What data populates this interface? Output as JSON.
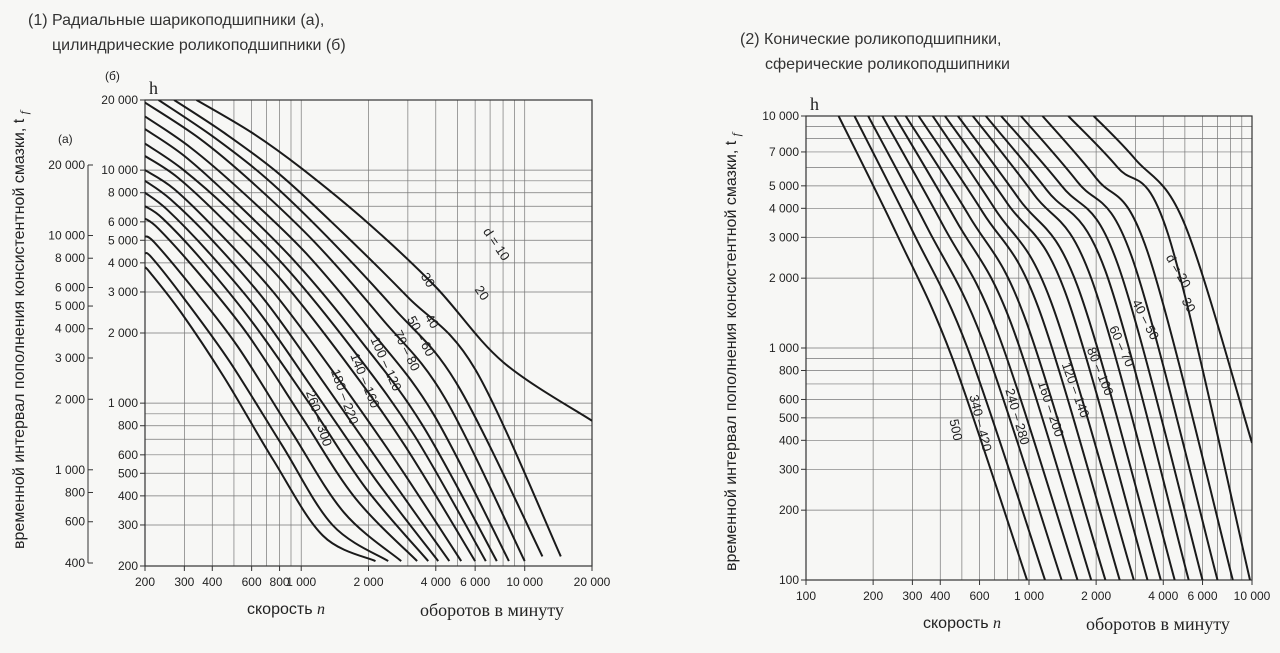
{
  "chart_data": [
    {
      "type": "line",
      "title": [
        "(1) Радиальные шарикоподшипники (а),",
        "цилиндрические роликоподшипники (б)"
      ],
      "ylabel": "временной интервал пополнения консистентной смазки, t",
      "ylabel_sub": "f",
      "y_unit": "h",
      "xlabel": "скорость",
      "xlabel_var": "n",
      "x_unit": "оборотов в минуту",
      "x_scale": "log",
      "y_scale": "log",
      "xlim": [
        200,
        20000
      ],
      "ylim_b": [
        200,
        20000
      ],
      "ylim_a": [
        400,
        20000
      ],
      "xticks": [
        {
          "v": 200,
          "t": "200"
        },
        {
          "v": 300,
          "t": "300"
        },
        {
          "v": 400,
          "t": "400"
        },
        {
          "v": 600,
          "t": "600"
        },
        {
          "v": 800,
          "t": "800"
        },
        {
          "v": 1000,
          "t": "1 000"
        },
        {
          "v": 2000,
          "t": "2 000"
        },
        {
          "v": 4000,
          "t": "4 000"
        },
        {
          "v": 6000,
          "t": "6 000"
        },
        {
          "v": 10000,
          "t": "10 000"
        },
        {
          "v": 20000,
          "t": "20 000"
        }
      ],
      "yticks_b_label": "(б)",
      "yticks_b": [
        {
          "v": 20000,
          "t": "20 000"
        },
        {
          "v": 10000,
          "t": "10 000"
        },
        {
          "v": 8000,
          "t": "8 000"
        },
        {
          "v": 6000,
          "t": "6 000"
        },
        {
          "v": 5000,
          "t": "5 000"
        },
        {
          "v": 4000,
          "t": "4 000"
        },
        {
          "v": 3000,
          "t": "3 000"
        },
        {
          "v": 2000,
          "t": "2 000"
        },
        {
          "v": 1000,
          "t": "1 000"
        },
        {
          "v": 800,
          "t": "800"
        },
        {
          "v": 600,
          "t": "600"
        },
        {
          "v": 500,
          "t": "500"
        },
        {
          "v": 400,
          "t": "400"
        },
        {
          "v": 300,
          "t": "300"
        },
        {
          "v": 200,
          "t": "200"
        }
      ],
      "yticks_a_label": "(а)",
      "yticks_a": [
        {
          "v": 20000,
          "t": "20 000"
        },
        {
          "v": 10000,
          "t": "10 000"
        },
        {
          "v": 8000,
          "t": "8 000"
        },
        {
          "v": 6000,
          "t": "6 000"
        },
        {
          "v": 5000,
          "t": "5 000"
        },
        {
          "v": 4000,
          "t": "4 000"
        },
        {
          "v": 3000,
          "t": "3 000"
        },
        {
          "v": 2000,
          "t": "2 000"
        },
        {
          "v": 1000,
          "t": "1 000"
        },
        {
          "v": 800,
          "t": "800"
        },
        {
          "v": 600,
          "t": "600"
        },
        {
          "v": 400,
          "t": "400"
        }
      ],
      "series": [
        {
          "name": "d = 10",
          "x": [
            340,
            600,
            1000,
            2000,
            4000,
            8000,
            20000
          ],
          "y": [
            20000,
            14500,
            10200,
            5900,
            3150,
            1500,
            840
          ]
        },
        {
          "name": "20",
          "x": [
            270,
            450,
            800,
            1500,
            3000,
            6000,
            14500
          ],
          "y": [
            20000,
            14500,
            9600,
            5500,
            2850,
            1400,
            220
          ]
        },
        {
          "name": "30",
          "x": [
            230,
            400,
            700,
            1300,
            2600,
            5000,
            12000
          ],
          "y": [
            20000,
            14000,
            9200,
            5200,
            2550,
            1200,
            220
          ]
        },
        {
          "name": "40",
          "x": [
            200,
            350,
            600,
            1150,
            2300,
            4400,
            10000
          ],
          "y": [
            19500,
            13700,
            8900,
            4900,
            2300,
            1050,
            210
          ]
        },
        {
          "name": "50",
          "x": [
            200,
            320,
            550,
            1050,
            2050,
            3900,
            8500
          ],
          "y": [
            17000,
            12500,
            8000,
            4400,
            2050,
            900,
            210
          ]
        },
        {
          "name": "60",
          "x": [
            200,
            300,
            500,
            950,
            1850,
            3500,
            7500
          ],
          "y": [
            15000,
            11500,
            7400,
            4000,
            1850,
            800,
            210
          ]
        },
        {
          "name": "70",
          "x": [
            200,
            290,
            480,
            880,
            1700,
            3200,
            6700
          ],
          "y": [
            13000,
            10200,
            6700,
            3700,
            1700,
            730,
            210
          ]
        },
        {
          "name": "80",
          "x": [
            200,
            280,
            450,
            820,
            1560,
            2900,
            6000
          ],
          "y": [
            11500,
            9300,
            6100,
            3350,
            1530,
            660,
            210
          ]
        },
        {
          "name": "100",
          "x": [
            200,
            270,
            420,
            750,
            1400,
            2600,
            5200
          ],
          "y": [
            10000,
            8300,
            5500,
            3000,
            1350,
            580,
            210
          ]
        },
        {
          "name": "120",
          "x": [
            200,
            260,
            400,
            700,
            1280,
            2350,
            4600
          ],
          "y": [
            9000,
            7500,
            5000,
            2700,
            1200,
            520,
            210
          ]
        },
        {
          "name": "140",
          "x": [
            200,
            250,
            380,
            650,
            1180,
            2150,
            4100
          ],
          "y": [
            8000,
            6800,
            4500,
            2450,
            1080,
            470,
            210
          ]
        },
        {
          "name": "160",
          "x": [
            200,
            240,
            360,
            610,
            1100,
            1950,
            3700
          ],
          "y": [
            7000,
            6200,
            4100,
            2200,
            980,
            430,
            210
          ]
        },
        {
          "name": "180",
          "x": [
            200,
            230,
            340,
            570,
            1000,
            1750,
            3300
          ],
          "y": [
            6200,
            5600,
            3700,
            2000,
            880,
            390,
            210
          ]
        },
        {
          "name": "220",
          "x": [
            200,
            220,
            320,
            520,
            900,
            1550,
            2800
          ],
          "y": [
            5200,
            4900,
            3200,
            1750,
            760,
            340,
            210
          ]
        },
        {
          "name": "260",
          "x": [
            200,
            215,
            300,
            480,
            820,
            1380,
            2450
          ],
          "y": [
            4400,
            4200,
            2800,
            1500,
            660,
            300,
            210
          ]
        },
        {
          "name": "300",
          "x": [
            200,
            210,
            290,
            450,
            750,
            1250,
            2150
          ],
          "y": [
            3800,
            3650,
            2450,
            1300,
            570,
            270,
            210
          ]
        }
      ],
      "curve_labels": [
        {
          "t": "d = 10",
          "x": 7200,
          "y": 4700,
          "rot": 56
        },
        {
          "t": "20",
          "x": 6200,
          "y": 2900,
          "rot": 56
        },
        {
          "t": "30",
          "x": 3550,
          "y": 3300,
          "rot": 58
        },
        {
          "t": "40",
          "x": 3700,
          "y": 2200,
          "rot": 58
        },
        {
          "t": "50 – 60",
          "x": 3300,
          "y": 1900,
          "rot": 62
        },
        {
          "t": "70 – 80",
          "x": 2850,
          "y": 1650,
          "rot": 64
        },
        {
          "t": "100 – 120",
          "x": 2300,
          "y": 1450,
          "rot": 66
        },
        {
          "t": "140 – 160",
          "x": 1850,
          "y": 1230,
          "rot": 68
        },
        {
          "t": "180 – 220",
          "x": 1500,
          "y": 1050,
          "rot": 70
        },
        {
          "t": "260 – 300",
          "x": 1150,
          "y": 850,
          "rot": 72
        }
      ]
    },
    {
      "type": "line",
      "title": [
        "(2) Конические роликоподшипники,",
        "сферические роликоподшипники"
      ],
      "ylabel": "временной интервал пополнения консистентной смазки, t",
      "ylabel_sub": "f",
      "y_unit": "h",
      "xlabel": "скорость",
      "xlabel_var": "n",
      "x_unit": "оборотов в минуту",
      "x_scale": "log",
      "y_scale": "log",
      "xlim": [
        100,
        10000
      ],
      "ylim": [
        100,
        10000
      ],
      "xticks": [
        {
          "v": 100,
          "t": "100"
        },
        {
          "v": 200,
          "t": "200"
        },
        {
          "v": 300,
          "t": "300"
        },
        {
          "v": 400,
          "t": "400"
        },
        {
          "v": 600,
          "t": "600"
        },
        {
          "v": 1000,
          "t": "1 000"
        },
        {
          "v": 2000,
          "t": "2 000"
        },
        {
          "v": 4000,
          "t": "4 000"
        },
        {
          "v": 6000,
          "t": "6 000"
        },
        {
          "v": 10000,
          "t": "10 000"
        }
      ],
      "yticks": [
        {
          "v": 10000,
          "t": "10 000"
        },
        {
          "v": 7000,
          "t": "7 000"
        },
        {
          "v": 5000,
          "t": "5 000"
        },
        {
          "v": 4000,
          "t": "4 000"
        },
        {
          "v": 3000,
          "t": "3 000"
        },
        {
          "v": 2000,
          "t": "2 000"
        },
        {
          "v": 1000,
          "t": "1 000"
        },
        {
          "v": 800,
          "t": "800"
        },
        {
          "v": 600,
          "t": "600"
        },
        {
          "v": 500,
          "t": "500"
        },
        {
          "v": 400,
          "t": "400"
        },
        {
          "v": 300,
          "t": "300"
        },
        {
          "v": 200,
          "t": "200"
        },
        {
          "v": 100,
          "t": "100"
        }
      ],
      "series": [
        {
          "name": "d = 20",
          "x": [
            1950,
            3000,
            5000,
            10000
          ],
          "y": [
            10000,
            6500,
            3400,
            390
          ]
        },
        {
          "name": "30",
          "x": [
            1500,
            2500,
            4200,
            9800
          ],
          "y": [
            10000,
            6000,
            3100,
            100
          ]
        },
        {
          "name": "40",
          "x": [
            1150,
            2000,
            3400,
            8200
          ],
          "y": [
            10000,
            5400,
            2600,
            100
          ]
        },
        {
          "name": "50",
          "x": [
            920,
            1650,
            2900,
            7000
          ],
          "y": [
            10000,
            5200,
            2450,
            100
          ]
        },
        {
          "name": "60",
          "x": [
            750,
            1400,
            2500,
            6000
          ],
          "y": [
            10000,
            5000,
            2300,
            100
          ]
        },
        {
          "name": "70",
          "x": [
            640,
            1200,
            2200,
            5200
          ],
          "y": [
            10000,
            4800,
            2150,
            100
          ]
        },
        {
          "name": "80",
          "x": [
            560,
            1050,
            1900,
            4500
          ],
          "y": [
            10000,
            4600,
            2000,
            100
          ]
        },
        {
          "name": "100",
          "x": [
            480,
            900,
            1650,
            3900
          ],
          "y": [
            10000,
            4400,
            1850,
            100
          ]
        },
        {
          "name": "120",
          "x": [
            420,
            800,
            1450,
            3400
          ],
          "y": [
            10000,
            4200,
            1750,
            100
          ]
        },
        {
          "name": "140",
          "x": [
            370,
            700,
            1250,
            2950
          ],
          "y": [
            10000,
            4000,
            1600,
            100
          ]
        },
        {
          "name": "160",
          "x": [
            320,
            620,
            1100,
            2550
          ],
          "y": [
            10000,
            3850,
            1500,
            100
          ]
        },
        {
          "name": "200",
          "x": [
            280,
            540,
            950,
            2200
          ],
          "y": [
            10000,
            3700,
            1380,
            100
          ]
        },
        {
          "name": "240",
          "x": [
            250,
            470,
            830,
            1900
          ],
          "y": [
            10000,
            3550,
            1280,
            100
          ]
        },
        {
          "name": "280",
          "x": [
            220,
            410,
            720,
            1650
          ],
          "y": [
            10000,
            3400,
            1180,
            100
          ]
        },
        {
          "name": "340",
          "x": [
            190,
            350,
            620,
            1400
          ],
          "y": [
            10000,
            3300,
            1080,
            100
          ]
        },
        {
          "name": "420",
          "x": [
            165,
            300,
            530,
            1180
          ],
          "y": [
            10000,
            3200,
            1000,
            100
          ]
        },
        {
          "name": "500",
          "x": [
            140,
            255,
            450,
            980
          ],
          "y": [
            10000,
            3100,
            920,
            100
          ]
        }
      ],
      "curve_labels": [
        {
          "t": "d = 20",
          "x": 4500,
          "y": 2100,
          "rot": 60
        },
        {
          "t": "30",
          "x": 5000,
          "y": 1500,
          "rot": 60
        },
        {
          "t": "40 – 50",
          "x": 3200,
          "y": 1300,
          "rot": 63
        },
        {
          "t": "60 – 70",
          "x": 2500,
          "y": 1000,
          "rot": 66
        },
        {
          "t": "80 – 100",
          "x": 2000,
          "y": 780,
          "rot": 68
        },
        {
          "t": "120 – 140",
          "x": 1550,
          "y": 650,
          "rot": 70
        },
        {
          "t": "160 – 200",
          "x": 1200,
          "y": 540,
          "rot": 72
        },
        {
          "t": "240 – 280",
          "x": 850,
          "y": 500,
          "rot": 74
        },
        {
          "t": "340 – 420",
          "x": 580,
          "y": 470,
          "rot": 76
        },
        {
          "t": "500",
          "x": 450,
          "y": 440,
          "rot": 78
        }
      ]
    }
  ]
}
